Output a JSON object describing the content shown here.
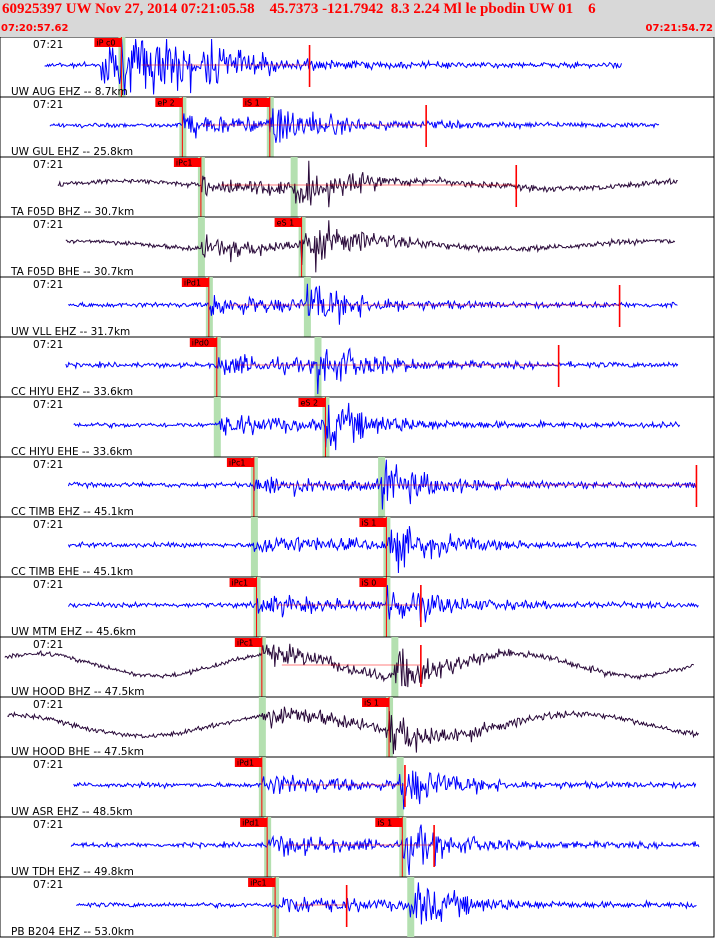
{
  "header": {
    "title": "60925397 UW Nov 27, 2014 07:21:05.58    45.7373 -121.7942  8.3 2.24 Ml le pbodin UW 01    6",
    "start_time": "07:20:57.62",
    "end_time": "07:21:54.72"
  },
  "colors": {
    "header_bg": "#d8d8d8",
    "header_text": "#ff0000",
    "ehz_trace": "#0000ff",
    "broadband_trace": "#2a0a3a",
    "pick": "#ff0000",
    "window": "#b4e0b0"
  },
  "chart_data": {
    "type": "line",
    "title": "60925397 UW Nov 27, 2014 07:21:05.58    45.7373 -121.7942  8.3 2.24 Ml le pbodin UW 01    6",
    "x_unit": "time",
    "x_range": [
      "07:20:57.62",
      "07:21:54.72"
    ],
    "tick_label": "07:21",
    "series": [
      {
        "name": "UW AUG EHZ -- 8.7km",
        "net": "UW",
        "sta": "AUG",
        "chan": "EHZ",
        "dist_km": 8.7,
        "picks": [
          "iP c0"
        ],
        "p_t": 7.6,
        "s_t": null
      },
      {
        "name": "UW GUL EHZ -- 25.8km",
        "net": "UW",
        "sta": "GUL",
        "chan": "EHZ",
        "dist_km": 25.8,
        "picks": [
          "eP 2",
          "iS 1"
        ],
        "p_t": 9.9,
        "s_t": 13.2
      },
      {
        "name": "TA F05D BHZ -- 30.7km",
        "net": "TA",
        "sta": "F05D",
        "chan": "BHZ",
        "dist_km": 30.7,
        "picks": [
          "iPc1"
        ],
        "p_t": 10.6,
        "s_t": 14.1
      },
      {
        "name": "TA F05D BHE -- 30.7km",
        "net": "TA",
        "sta": "F05D",
        "chan": "BHE",
        "dist_km": 30.7,
        "picks": [
          "eS 1"
        ],
        "p_t": null,
        "s_t": 14.4
      },
      {
        "name": "UW VLL EHZ -- 31.7km",
        "net": "UW",
        "sta": "VLL",
        "chan": "EHZ",
        "dist_km": 31.7,
        "picks": [
          "iPd1"
        ],
        "p_t": 10.9,
        "s_t": 14.6
      },
      {
        "name": "CC HIYU EHZ -- 33.6km",
        "net": "CC",
        "sta": "HIYU",
        "chan": "EHZ",
        "dist_km": 33.6,
        "picks": [
          "iPd0"
        ],
        "p_t": 11.2,
        "s_t": 15.0
      },
      {
        "name": "CC HIYU EHE -- 33.6km",
        "net": "CC",
        "sta": "HIYU",
        "chan": "EHE",
        "dist_km": 33.6,
        "picks": [
          "eS 2"
        ],
        "p_t": null,
        "s_t": 15.3
      },
      {
        "name": "CC TIMB EHZ -- 45.1km",
        "net": "CC",
        "sta": "TIMB",
        "chan": "EHZ",
        "dist_km": 45.1,
        "picks": [
          "iPc1"
        ],
        "p_t": 12.6,
        "s_t": 17.4
      },
      {
        "name": "CC TIMB EHE -- 45.1km",
        "net": "CC",
        "sta": "TIMB",
        "chan": "EHE",
        "dist_km": 45.1,
        "picks": [
          "iS 1"
        ],
        "p_t": null,
        "s_t": 17.6
      },
      {
        "name": "UW MTM EHZ -- 45.6km",
        "net": "UW",
        "sta": "MTM",
        "chan": "EHZ",
        "dist_km": 45.6,
        "picks": [
          "iPc1",
          "iS 0"
        ],
        "p_t": 12.7,
        "s_t": 17.6
      },
      {
        "name": "UW HOOD BHZ -- 47.5km",
        "net": "UW",
        "sta": "HOOD",
        "chan": "BHZ",
        "dist_km": 47.5,
        "picks": [
          "iPc1"
        ],
        "p_t": 12.9,
        "s_t": 17.9
      },
      {
        "name": "UW HOOD BHE -- 47.5km",
        "net": "UW",
        "sta": "HOOD",
        "chan": "BHE",
        "dist_km": 47.5,
        "picks": [
          "iS 1"
        ],
        "p_t": null,
        "s_t": 17.7
      },
      {
        "name": "UW ASR EHZ -- 48.5km",
        "net": "UW",
        "sta": "ASR",
        "chan": "EHZ",
        "dist_km": 48.5,
        "picks": [
          "iPd1"
        ],
        "p_t": 12.9,
        "s_t": 18.1
      },
      {
        "name": "UW TDH EHZ -- 49.8km",
        "net": "UW",
        "sta": "TDH",
        "chan": "EHZ",
        "dist_km": 49.8,
        "picks": [
          "iPd1",
          "iS 1"
        ],
        "p_t": 13.1,
        "s_t": 18.2
      },
      {
        "name": "PB B204 EHZ -- 53.0km",
        "net": "PB",
        "sta": "B204",
        "chan": "EHZ",
        "dist_km": 53.0,
        "picks": [
          "iPc1"
        ],
        "p_t": 13.4,
        "s_t": 18.5
      }
    ]
  }
}
